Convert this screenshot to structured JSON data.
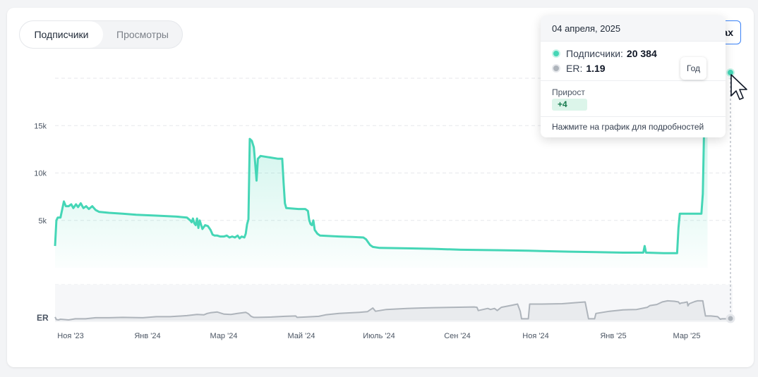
{
  "tabs": [
    {
      "label": "Подписчики",
      "active": true
    },
    {
      "label": "Просмотры",
      "active": false
    }
  ],
  "range_button": {
    "label": "ax"
  },
  "tooltip": {
    "date": "04 апреля, 2025",
    "subscribers_label": "Подписчики:",
    "subscribers_value": "20 384",
    "er_label": "ER:",
    "er_value": "1.19",
    "growth_label": "Прирост",
    "growth_value": "+4",
    "hint": "Нажмите на график для подробностей",
    "year_button": "Год"
  },
  "colors": {
    "subscribers": "#45d6b6",
    "er": "#aeb4bb"
  },
  "chart_data": {
    "type": "line",
    "x_ticks": [
      "Ноя '23",
      "Янв '24",
      "Мар '24",
      "Май '24",
      "Июль '24",
      "Сен '24",
      "Ноя '24",
      "Янв '25",
      "Мар '25"
    ],
    "y_ticks": [
      "5k",
      "10k",
      "15k"
    ],
    "er_label": "ER",
    "ylim": [
      0,
      20000
    ],
    "grid": true,
    "series": [
      {
        "name": "Подписчики",
        "type": "area",
        "points": [
          [
            0,
            2300
          ],
          [
            2,
            5000
          ],
          [
            4,
            5300
          ],
          [
            8,
            5300
          ],
          [
            13,
            7000
          ],
          [
            16,
            6500
          ],
          [
            20,
            6500
          ],
          [
            24,
            6700
          ],
          [
            27,
            6300
          ],
          [
            31,
            6700
          ],
          [
            34,
            6400
          ],
          [
            38,
            6800
          ],
          [
            42,
            6300
          ],
          [
            46,
            6500
          ],
          [
            50,
            6200
          ],
          [
            55,
            6500
          ],
          [
            60,
            6100
          ],
          [
            65,
            5900
          ],
          [
            80,
            5800
          ],
          [
            100,
            5700
          ],
          [
            120,
            5600
          ],
          [
            150,
            5500
          ],
          [
            180,
            5400
          ],
          [
            195,
            5300
          ],
          [
            200,
            5000
          ],
          [
            202,
            4800
          ],
          [
            204,
            5200
          ],
          [
            206,
            4700
          ],
          [
            208,
            4500
          ],
          [
            210,
            5200
          ],
          [
            212,
            4200
          ],
          [
            214,
            5000
          ],
          [
            218,
            4100
          ],
          [
            222,
            4500
          ],
          [
            226,
            4400
          ],
          [
            230,
            4000
          ],
          [
            233,
            3500
          ],
          [
            236,
            3400
          ],
          [
            240,
            3400
          ],
          [
            244,
            3300
          ],
          [
            250,
            3300
          ],
          [
            254,
            3400
          ],
          [
            258,
            3200
          ],
          [
            262,
            3300
          ],
          [
            266,
            3200
          ],
          [
            270,
            3400
          ],
          [
            273,
            3100
          ],
          [
            276,
            3300
          ],
          [
            280,
            3200
          ],
          [
            282,
            3600
          ],
          [
            284,
            4600
          ],
          [
            286,
            5100
          ],
          [
            288,
            13600
          ],
          [
            291,
            13400
          ],
          [
            294,
            12700
          ],
          [
            296,
            11000
          ],
          [
            298,
            9200
          ],
          [
            300,
            11500
          ],
          [
            304,
            11800
          ],
          [
            330,
            11500
          ],
          [
            336,
            11500
          ],
          [
            338,
            9000
          ],
          [
            340,
            6800
          ],
          [
            342,
            6300
          ],
          [
            360,
            6200
          ],
          [
            370,
            6200
          ],
          [
            374,
            6000
          ],
          [
            376,
            5000
          ],
          [
            378,
            4600
          ],
          [
            380,
            4500
          ],
          [
            382,
            5000
          ],
          [
            384,
            4000
          ],
          [
            388,
            3600
          ],
          [
            392,
            3400
          ],
          [
            420,
            3300
          ],
          [
            440,
            3250
          ],
          [
            456,
            3200
          ],
          [
            460,
            3000
          ],
          [
            463,
            2700
          ],
          [
            466,
            2400
          ],
          [
            470,
            2200
          ],
          [
            480,
            2100
          ],
          [
            520,
            2050
          ],
          [
            560,
            2000
          ],
          [
            600,
            1900
          ],
          [
            660,
            1850
          ],
          [
            700,
            1800
          ],
          [
            760,
            1700
          ],
          [
            800,
            1650
          ],
          [
            840,
            1600
          ],
          [
            870,
            1600
          ],
          [
            872,
            2300
          ],
          [
            874,
            1600
          ],
          [
            900,
            1550
          ],
          [
            920,
            1550
          ],
          [
            922,
            4200
          ],
          [
            924,
            5700
          ],
          [
            956,
            5700
          ],
          [
            958,
            7800
          ],
          [
            960,
            15000
          ],
          [
            962,
            18000
          ],
          [
            964,
            20200
          ],
          [
            965,
            20384
          ]
        ]
      },
      {
        "name": "ER",
        "points": [
          [
            0,
            10
          ],
          [
            2,
            3
          ],
          [
            5,
            2
          ],
          [
            8,
            4
          ],
          [
            20,
            2
          ],
          [
            30,
            5
          ],
          [
            45,
            5
          ],
          [
            60,
            8
          ],
          [
            80,
            8
          ],
          [
            100,
            9
          ],
          [
            130,
            8
          ],
          [
            150,
            11
          ],
          [
            170,
            11
          ],
          [
            195,
            14
          ],
          [
            210,
            17
          ],
          [
            220,
            16
          ],
          [
            225,
            20
          ],
          [
            230,
            22
          ],
          [
            240,
            24
          ],
          [
            250,
            18
          ],
          [
            260,
            17
          ],
          [
            270,
            20
          ],
          [
            282,
            23
          ],
          [
            286,
            19
          ],
          [
            290,
            12
          ],
          [
            294,
            9
          ],
          [
            300,
            9
          ],
          [
            320,
            10
          ],
          [
            340,
            12
          ],
          [
            356,
            13
          ],
          [
            358,
            9
          ],
          [
            370,
            10
          ],
          [
            390,
            12
          ],
          [
            400,
            16
          ],
          [
            420,
            20
          ],
          [
            450,
            23
          ],
          [
            462,
            25
          ],
          [
            470,
            35
          ],
          [
            474,
            26
          ],
          [
            490,
            31
          ],
          [
            520,
            34
          ],
          [
            540,
            35
          ],
          [
            560,
            36
          ],
          [
            590,
            37
          ],
          [
            620,
            38
          ],
          [
            624,
            37
          ],
          [
            626,
            28
          ],
          [
            640,
            34
          ],
          [
            644,
            31
          ],
          [
            650,
            34
          ],
          [
            654,
            28
          ],
          [
            660,
            37
          ],
          [
            676,
            43
          ],
          [
            684,
            46
          ],
          [
            688,
            26
          ],
          [
            690,
            5
          ],
          [
            694,
            5
          ],
          [
            700,
            5
          ],
          [
            702,
            46
          ],
          [
            720,
            46
          ],
          [
            750,
            47
          ],
          [
            770,
            50
          ],
          [
            784,
            52
          ],
          [
            789,
            5
          ],
          [
            795,
            5
          ],
          [
            798,
            5
          ],
          [
            800,
            20
          ],
          [
            820,
            26
          ],
          [
            840,
            30
          ],
          [
            860,
            31
          ],
          [
            876,
            37
          ],
          [
            880,
            42
          ],
          [
            890,
            45
          ],
          [
            898,
            52
          ],
          [
            906,
            55
          ],
          [
            916,
            54
          ],
          [
            922,
            52
          ],
          [
            924,
            47
          ],
          [
            926,
            49
          ],
          [
            930,
            50
          ],
          [
            935,
            52
          ],
          [
            936,
            41
          ],
          [
            938,
            47
          ],
          [
            942,
            50
          ],
          [
            946,
            53
          ],
          [
            950,
            55
          ],
          [
            958,
            55
          ],
          [
            960,
            33
          ],
          [
            962,
            13
          ],
          [
            970,
            13
          ],
          [
            980,
            11
          ],
          [
            984,
            4
          ],
          [
            986,
            5
          ],
          [
            1000,
            5
          ]
        ]
      }
    ]
  }
}
